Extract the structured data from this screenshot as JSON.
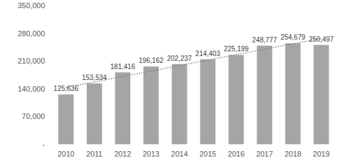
{
  "chart_data": {
    "type": "bar",
    "categories": [
      "2010",
      "2011",
      "2012",
      "2013",
      "2014",
      "2015",
      "2016",
      "2017",
      "2018",
      "2019"
    ],
    "values": [
      125636,
      153534,
      181416,
      196162,
      202237,
      214403,
      225199,
      248777,
      254679,
      250497
    ],
    "value_labels": [
      "125,636",
      "153,534",
      "181,416",
      "196,162",
      "202,237",
      "214,403",
      "225,199",
      "248,777",
      "254,679",
      "250,497"
    ],
    "color": "#a5a5a5",
    "ylim": [
      0,
      350000
    ],
    "yticks": [
      {
        "value": 0,
        "label": "-"
      },
      {
        "value": 70000,
        "label": "70,000"
      },
      {
        "value": 140000,
        "label": "140,000"
      },
      {
        "value": 210000,
        "label": "210,000"
      },
      {
        "value": 280000,
        "label": "280,000"
      },
      {
        "value": 350000,
        "label": "350,000"
      }
    ],
    "grid": false,
    "data_labels": true
  }
}
